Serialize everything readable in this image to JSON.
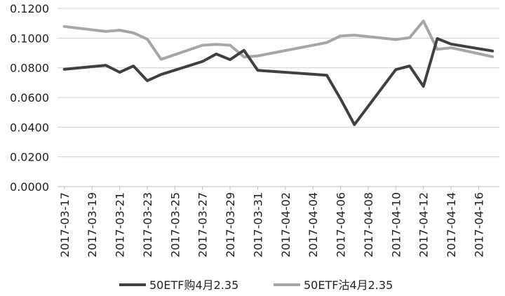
{
  "chart_data": {
    "type": "line",
    "title": "",
    "xlabel": "",
    "ylabel": "",
    "ylim": [
      0,
      0.12
    ],
    "y_ticks": [
      "0.0000",
      "0.0200",
      "0.0400",
      "0.0600",
      "0.0800",
      "0.1000",
      "0.1200"
    ],
    "grid": "horizontal",
    "legend_position": "bottom",
    "x": [
      "2017-03-17",
      "2017-03-20",
      "2017-03-21",
      "2017-03-22",
      "2017-03-23",
      "2017-03-24",
      "2017-03-27",
      "2017-03-28",
      "2017-03-29",
      "2017-03-30",
      "2017-03-31",
      "2017-04-05",
      "2017-04-06",
      "2017-04-07",
      "2017-04-10",
      "2017-04-11",
      "2017-04-12",
      "2017-04-13",
      "2017-04-14",
      "2017-04-17"
    ],
    "x_tick_labels": [
      "2017-03-17",
      "2017-03-19",
      "2017-03-21",
      "2017-03-23",
      "2017-03-25",
      "2017-03-27",
      "2017-03-29",
      "2017-03-31",
      "2017-04-02",
      "2017-04-04",
      "2017-04-06",
      "2017-04-08",
      "2017-04-10",
      "2017-04-12",
      "2017-04-14",
      "2017-04-16"
    ],
    "series": [
      {
        "name": "50ETF购4月2.35",
        "color": "#404040",
        "values": [
          0.079,
          0.0817,
          0.077,
          0.0812,
          0.0713,
          0.0755,
          0.0843,
          0.0893,
          0.0855,
          0.0918,
          0.0783,
          0.075,
          0.059,
          0.0417,
          0.0788,
          0.0812,
          0.0675,
          0.0997,
          0.096,
          0.0913
        ]
      },
      {
        "name": "50ETF沽4月2.35",
        "color": "#a6a6a6",
        "values": [
          0.1078,
          0.1045,
          0.1053,
          0.1035,
          0.0993,
          0.0857,
          0.0952,
          0.0958,
          0.0952,
          0.0873,
          0.088,
          0.097,
          0.1015,
          0.102,
          0.099,
          0.1003,
          0.1115,
          0.0925,
          0.0935,
          0.0875
        ]
      }
    ]
  }
}
